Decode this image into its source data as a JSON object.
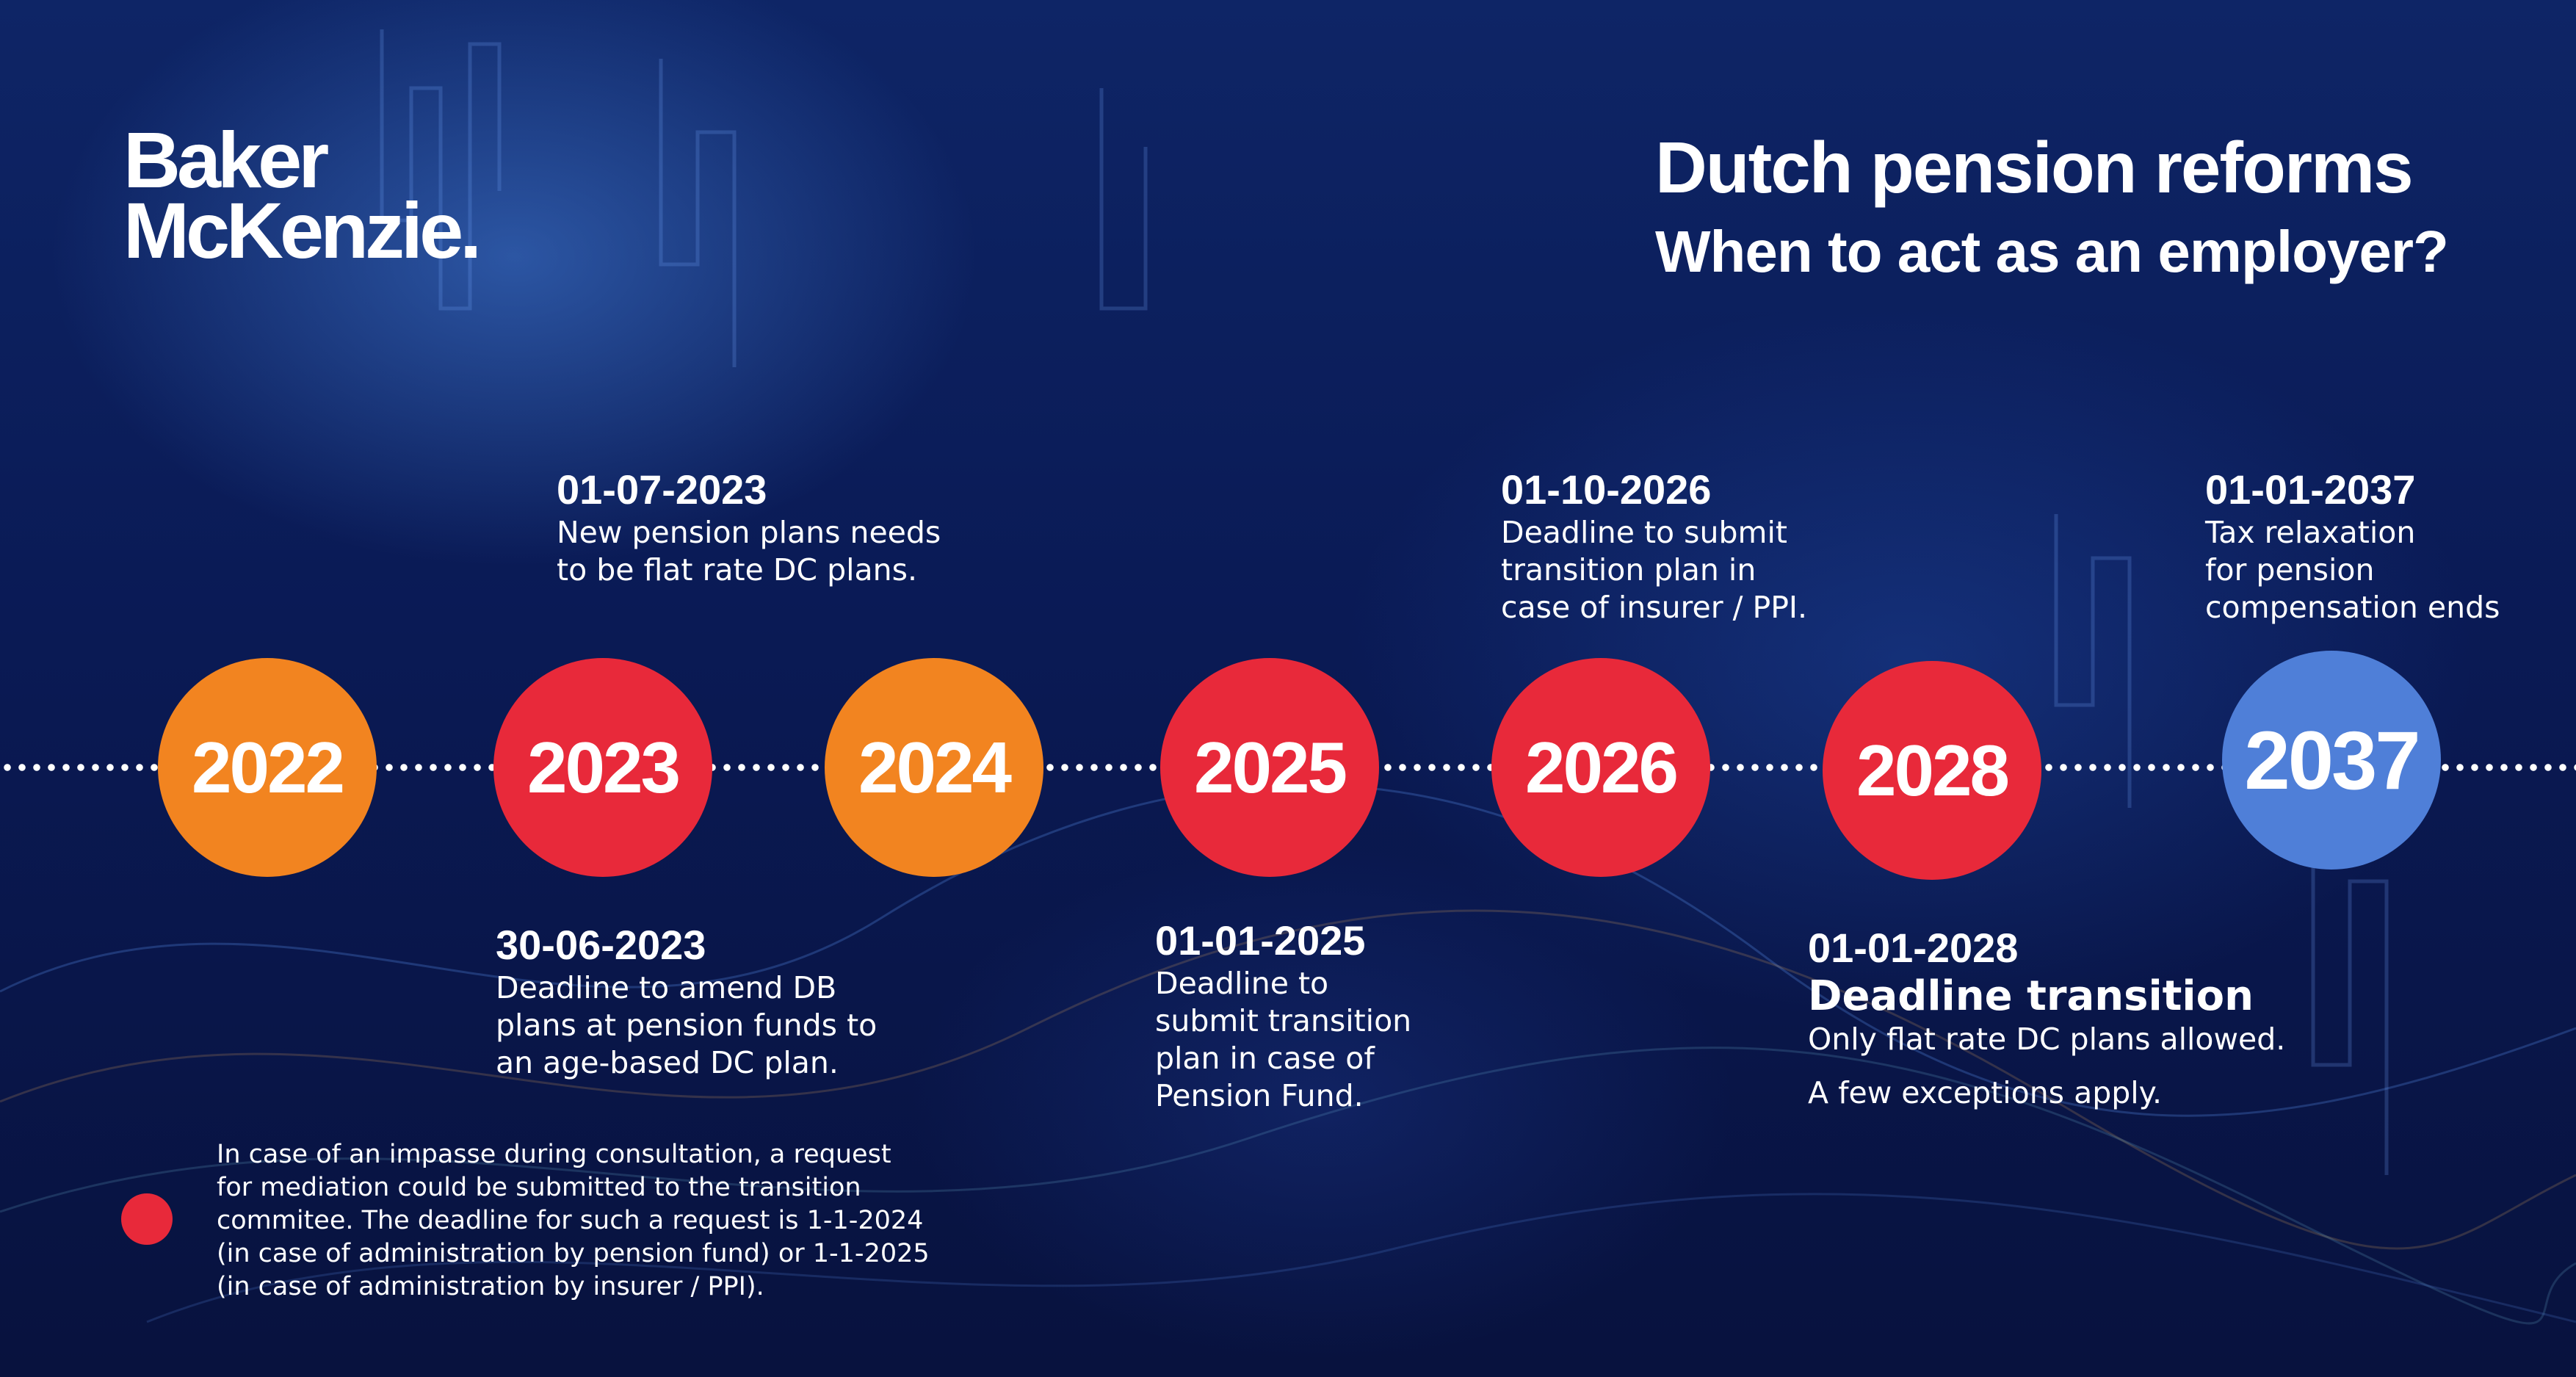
{
  "brand": {
    "logo_line1": "Baker",
    "logo_line2": "McKenzie."
  },
  "header": {
    "title": "Dutch pension reforms",
    "subtitle": "When to act as an employer?"
  },
  "colors": {
    "orange": "#f28420",
    "red": "#e8293a",
    "blue": "#4f7fd8",
    "background": "#0a1648"
  },
  "timeline": {
    "years": [
      {
        "label": "2022",
        "color": "orange"
      },
      {
        "label": "2023",
        "color": "red"
      },
      {
        "label": "2024",
        "color": "orange"
      },
      {
        "label": "2025",
        "color": "red"
      },
      {
        "label": "2026",
        "color": "red"
      },
      {
        "label": "2028",
        "color": "red"
      },
      {
        "label": "2037",
        "color": "blue"
      }
    ],
    "events": [
      {
        "date": "01-07-2023",
        "description": "New pension plans needs\nto be flat rate DC plans."
      },
      {
        "date": "30-06-2023",
        "description": "Deadline to amend DB\nplans at pension funds to\nan age-based DC plan."
      },
      {
        "date": "01-01-2025",
        "description": "Deadline to\nsubmit transition\nplan in case of\nPension Fund."
      },
      {
        "date": "01-10-2026",
        "description": "Deadline to submit\ntransition plan in\ncase of insurer / PPI."
      },
      {
        "date": "01-01-2028",
        "headline": "Deadline transition",
        "description": "Only flat rate DC plans allowed.",
        "extra": "A few exceptions apply."
      },
      {
        "date": "01-01-2037",
        "description": "Tax relaxation\nfor pension\ncompensation ends"
      }
    ]
  },
  "footnote": {
    "text": "In case of an impasse during consultation, a request\nfor mediation could be submitted to the transition\ncommitee. The deadline for such a request is 1-1-2024\n(in case of administration by pension fund) or 1-1-2025\n(in case of administration by insurer / PPI)."
  }
}
